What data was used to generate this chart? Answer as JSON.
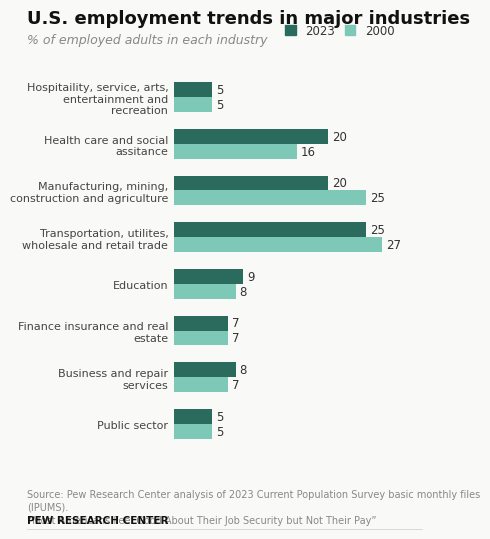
{
  "title": "U.S. employment trends in major industries",
  "subtitle": "% of employed adults in each industry",
  "categories": [
    "Hospitaility, service, arts,\nentertainment and\nrecreation",
    "Health care and social\nassitance",
    "Manufacturing, mining,\nconstruction and agriculture",
    "Transportation, utilites,\nwholesale and retail trade",
    "Education",
    "Finance insurance and real\nestate",
    "Business and repair\nservices",
    "Public sector"
  ],
  "values_2023": [
    5,
    20,
    20,
    25,
    9,
    7,
    8,
    5
  ],
  "values_2000": [
    5,
    16,
    25,
    27,
    8,
    7,
    7,
    5
  ],
  "color_2023": "#2b6b5e",
  "color_2000": "#7ec8b8",
  "bar_height": 0.32,
  "xlim": [
    0,
    30
  ],
  "legend_labels": [
    "2023",
    "2000"
  ],
  "source_text": "Source: Pew Research Center analysis of 2023 Current Population Survey basic monthly files\n(IPUMS).\n“Most Americans Feel Good About Their Job Security but Not Their Pay”",
  "footer": "PEW RESEARCH CENTER",
  "title_fontsize": 13,
  "subtitle_fontsize": 9,
  "label_fontsize": 8,
  "value_fontsize": 8.5,
  "legend_fontsize": 8.5,
  "source_fontsize": 7,
  "footer_fontsize": 7.5,
  "background_color": "#f9f9f7"
}
